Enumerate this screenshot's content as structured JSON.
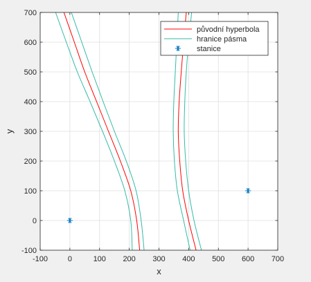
{
  "chart_data": {
    "type": "line",
    "title": "",
    "xlabel": "x",
    "ylabel": "y",
    "xlim": [
      -100,
      700
    ],
    "ylim": [
      -100,
      700
    ],
    "xticks": [
      -100,
      0,
      100,
      200,
      300,
      400,
      500,
      600,
      700
    ],
    "yticks": [
      -100,
      0,
      100,
      200,
      300,
      400,
      500,
      600,
      700
    ],
    "grid": true,
    "legend_position": "top-right",
    "series": [
      {
        "name": "původní hyperbola",
        "kind": "line",
        "color": "#ff0000",
        "branches": [
          [
            [
              235,
              -100
            ],
            [
              225,
              0
            ],
            [
              205,
              100
            ],
            [
              170,
              200
            ],
            [
              130,
              300
            ],
            [
              90,
              400
            ],
            [
              50,
              500
            ],
            [
              15,
              600
            ],
            [
              -20,
              700
            ]
          ],
          [
            [
              425,
              -100
            ],
            [
              400,
              0
            ],
            [
              380,
              100
            ],
            [
              370,
              200
            ],
            [
              365,
              300
            ],
            [
              368,
              400
            ],
            [
              375,
              500
            ],
            [
              383,
              600
            ],
            [
              392,
              700
            ]
          ]
        ]
      },
      {
        "name": "hranice pásma",
        "kind": "line",
        "color": "#33bba6",
        "branches": [
          [
            [
              250,
              -100
            ],
            [
              240,
              0
            ],
            [
              223,
              100
            ],
            [
              190,
              200
            ],
            [
              150,
              300
            ],
            [
              112,
              400
            ],
            [
              75,
              500
            ],
            [
              40,
              600
            ],
            [
              5,
              700
            ]
          ],
          [
            [
              210,
              -100
            ],
            [
              205,
              0
            ],
            [
              185,
              100
            ],
            [
              150,
              200
            ],
            [
              110,
              300
            ],
            [
              68,
              400
            ],
            [
              25,
              500
            ],
            [
              -12,
              600
            ],
            [
              -48,
              700
            ]
          ],
          [
            [
              443,
              -100
            ],
            [
              418,
              0
            ],
            [
              400,
              100
            ],
            [
              390,
              200
            ],
            [
              385,
              300
            ],
            [
              387,
              400
            ],
            [
              392,
              500
            ],
            [
              400,
              600
            ],
            [
              410,
              700
            ]
          ],
          [
            [
              405,
              -100
            ],
            [
              383,
              0
            ],
            [
              362,
              100
            ],
            [
              352,
              200
            ],
            [
              348,
              300
            ],
            [
              350,
              400
            ],
            [
              355,
              500
            ],
            [
              360,
              600
            ],
            [
              365,
              700
            ]
          ]
        ]
      },
      {
        "name": "stanice",
        "kind": "marker",
        "marker": "*",
        "color": "#0072bd",
        "points": [
          [
            0,
            0
          ],
          [
            600,
            100
          ]
        ]
      }
    ]
  }
}
